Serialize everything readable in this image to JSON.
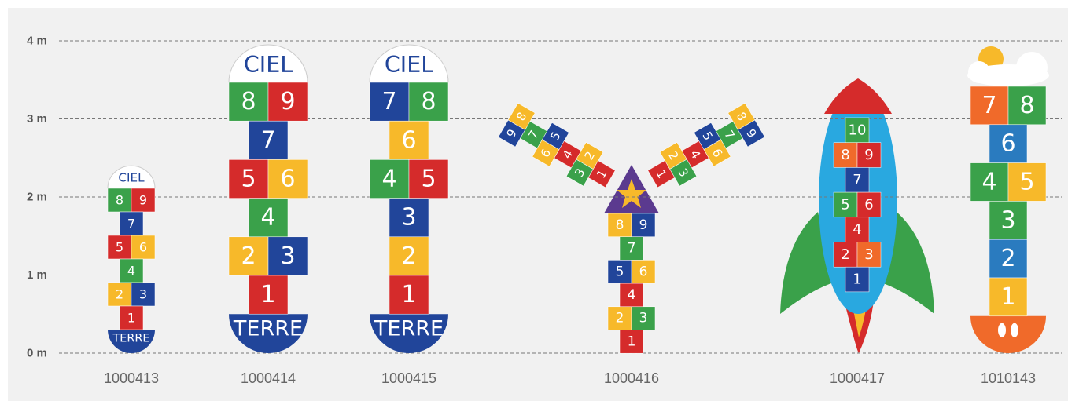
{
  "axis": {
    "ticks": [
      "4 m",
      "3 m",
      "2 m",
      "1 m",
      "0 m"
    ]
  },
  "products": [
    {
      "code": "1000413",
      "top": "CIEL",
      "bottom": "TERRE",
      "rows": [
        [
          {
            "label": "8",
            "color": "#3aa14a"
          },
          {
            "label": "9",
            "color": "#d52b2b"
          }
        ],
        [
          {
            "label": "7",
            "color": "#21459a"
          }
        ],
        [
          {
            "label": "5",
            "color": "#d52b2b"
          },
          {
            "label": "6",
            "color": "#f7b92a"
          }
        ],
        [
          {
            "label": "4",
            "color": "#3aa14a"
          }
        ],
        [
          {
            "label": "2",
            "color": "#f7b92a"
          },
          {
            "label": "3",
            "color": "#21459a"
          }
        ],
        [
          {
            "label": "1",
            "color": "#d52b2b"
          }
        ]
      ]
    },
    {
      "code": "1000414",
      "top": "CIEL",
      "bottom": "TERRE",
      "rows": [
        [
          {
            "label": "8",
            "color": "#3aa14a"
          },
          {
            "label": "9",
            "color": "#d52b2b"
          }
        ],
        [
          {
            "label": "7",
            "color": "#21459a"
          }
        ],
        [
          {
            "label": "5",
            "color": "#d52b2b"
          },
          {
            "label": "6",
            "color": "#f7b92a"
          }
        ],
        [
          {
            "label": "4",
            "color": "#3aa14a"
          }
        ],
        [
          {
            "label": "2",
            "color": "#f7b92a"
          },
          {
            "label": "3",
            "color": "#21459a"
          }
        ],
        [
          {
            "label": "1",
            "color": "#d52b2b"
          }
        ]
      ]
    },
    {
      "code": "1000415",
      "top": "CIEL",
      "bottom": "TERRE",
      "rows": [
        [
          {
            "label": "7",
            "color": "#21459a"
          },
          {
            "label": "8",
            "color": "#3aa14a"
          }
        ],
        [
          {
            "label": "6",
            "color": "#f7b92a"
          }
        ],
        [
          {
            "label": "4",
            "color": "#3aa14a"
          },
          {
            "label": "5",
            "color": "#d52b2b"
          }
        ],
        [
          {
            "label": "3",
            "color": "#21459a"
          }
        ],
        [
          {
            "label": "2",
            "color": "#f7b92a"
          }
        ],
        [
          {
            "label": "1",
            "color": "#d52b2b"
          }
        ]
      ]
    },
    {
      "code": "1000416",
      "rows": [
        [
          {
            "label": "8",
            "color": "#f7b92a"
          },
          {
            "label": "9",
            "color": "#21459a"
          }
        ],
        [
          {
            "label": "7",
            "color": "#3aa14a"
          }
        ],
        [
          {
            "label": "5",
            "color": "#21459a"
          },
          {
            "label": "6",
            "color": "#f7b92a"
          }
        ],
        [
          {
            "label": "4",
            "color": "#d52b2b"
          }
        ],
        [
          {
            "label": "2",
            "color": "#f7b92a"
          },
          {
            "label": "3",
            "color": "#3aa14a"
          }
        ],
        [
          {
            "label": "1",
            "color": "#d52b2b"
          }
        ]
      ],
      "left_arm": [
        [
          {
            "label": "9",
            "color": "#21459a"
          },
          {
            "label": "8",
            "color": "#f7b92a"
          }
        ],
        [
          {
            "label": "7",
            "color": "#3aa14a"
          }
        ],
        [
          {
            "label": "6",
            "color": "#f7b92a"
          },
          {
            "label": "5",
            "color": "#21459a"
          }
        ],
        [
          {
            "label": "4",
            "color": "#d52b2b"
          }
        ],
        [
          {
            "label": "3",
            "color": "#3aa14a"
          },
          {
            "label": "2",
            "color": "#f7b92a"
          }
        ],
        [
          {
            "label": "1",
            "color": "#d52b2b"
          }
        ]
      ],
      "right_arm": [
        [
          {
            "label": "8",
            "color": "#f7b92a"
          },
          {
            "label": "9",
            "color": "#21459a"
          }
        ],
        [
          {
            "label": "7",
            "color": "#3aa14a"
          }
        ],
        [
          {
            "label": "5",
            "color": "#21459a"
          },
          {
            "label": "6",
            "color": "#f7b92a"
          }
        ],
        [
          {
            "label": "4",
            "color": "#d52b2b"
          }
        ],
        [
          {
            "label": "2",
            "color": "#f7b92a"
          },
          {
            "label": "3",
            "color": "#3aa14a"
          }
        ],
        [
          {
            "label": "1",
            "color": "#d52b2b"
          }
        ]
      ]
    },
    {
      "code": "1000417",
      "rows": [
        [
          {
            "label": "10",
            "color": "#3aa14a"
          }
        ],
        [
          {
            "label": "8",
            "color": "#f06a2a"
          },
          {
            "label": "9",
            "color": "#d52b2b"
          }
        ],
        [
          {
            "label": "7",
            "color": "#21459a"
          }
        ],
        [
          {
            "label": "5",
            "color": "#3aa14a"
          },
          {
            "label": "6",
            "color": "#d52b2b"
          }
        ],
        [
          {
            "label": "4",
            "color": "#d52b2b"
          }
        ],
        [
          {
            "label": "2",
            "color": "#d52b2b"
          },
          {
            "label": "3",
            "color": "#f06a2a"
          }
        ],
        [
          {
            "label": "1",
            "color": "#21459a"
          }
        ]
      ]
    },
    {
      "code": "1010143",
      "rows": [
        [
          {
            "label": "7",
            "color": "#f06a2a"
          },
          {
            "label": "8",
            "color": "#3aa14a"
          }
        ],
        [
          {
            "label": "6",
            "color": "#2a7bbf"
          }
        ],
        [
          {
            "label": "4",
            "color": "#3aa14a"
          },
          {
            "label": "5",
            "color": "#f7b92a"
          }
        ],
        [
          {
            "label": "3",
            "color": "#3aa14a"
          }
        ],
        [
          {
            "label": "2",
            "color": "#2a7bbf"
          }
        ],
        [
          {
            "label": "1",
            "color": "#f7b92a"
          }
        ]
      ]
    }
  ]
}
